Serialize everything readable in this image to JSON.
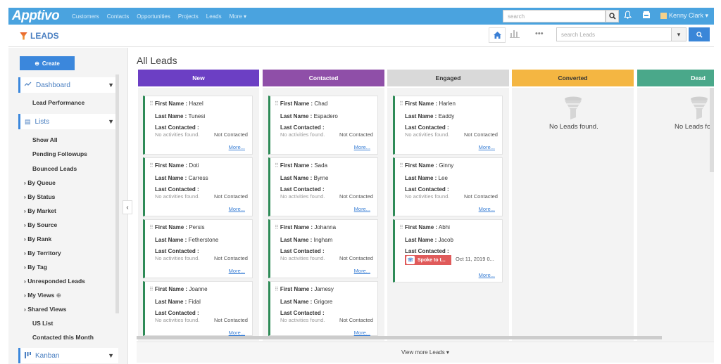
{
  "app": {
    "logo": "Apptivo"
  },
  "topnav": {
    "items": [
      "Customers",
      "Contacts",
      "Opportunities",
      "Projects",
      "Leads",
      "More ▾"
    ]
  },
  "topbar": {
    "search_placeholder": "search",
    "user": "Kenny Clark ▾"
  },
  "subheader": {
    "title": "LEADS",
    "search_placeholder": "search Leads"
  },
  "sidebar": {
    "create_label": "Create",
    "dashboard_label": "Dashboard",
    "lead_performance": "Lead Performance",
    "lists_label": "Lists",
    "items": [
      "Show All",
      "Pending Followups",
      "Bounced Leads"
    ],
    "groups": [
      "By Queue",
      "By Status",
      "By Market",
      "By Source",
      "By Rank",
      "By Territory",
      "By Tag",
      "Unresponded Leads",
      "My Views",
      "Shared Views"
    ],
    "bottom_items": [
      "US List",
      "Contacted this Month"
    ],
    "kanban_label": "Kanban"
  },
  "main": {
    "title": "All Leads",
    "columns": [
      {
        "label": "New",
        "color": "#6c3fc4"
      },
      {
        "label": "Contacted",
        "color": "#8f4fa8"
      },
      {
        "label": "Engaged",
        "color": "#d9d9d9"
      },
      {
        "label": "Converted",
        "color": "#f4b642"
      },
      {
        "label": "Dead",
        "color": "#4aa88a"
      }
    ],
    "labels": {
      "first_name": "First Name :",
      "last_name": "Last Name :",
      "last_contacted": "Last Contacted :",
      "no_activities": "No activities found.",
      "not_contacted": "Not Contacted",
      "more": "More...",
      "no_leads": "No Leads found.",
      "no_leads_cut": "No Leads fo"
    },
    "new": [
      {
        "first": "Hazel",
        "last": "Tunesi"
      },
      {
        "first": "Doti",
        "last": "Carress"
      },
      {
        "first": "Persis",
        "last": "Fetherstone"
      },
      {
        "first": "Joanne",
        "last": "Fidal"
      }
    ],
    "contacted": [
      {
        "first": "Chad",
        "last": "Espadero"
      },
      {
        "first": "Sada",
        "last": "Byrne"
      },
      {
        "first": "Johanna",
        "last": "Ingham"
      },
      {
        "first": "Jamesy",
        "last": "Grigore"
      }
    ],
    "engaged": [
      {
        "first": "Harlen",
        "last": "Eaddy"
      },
      {
        "first": "Ginny",
        "last": "Lee"
      },
      {
        "first": "Abhi",
        "last": "Jacob",
        "badge": "Spoke to t...",
        "date": "Oct 11, 2019 0..."
      }
    ],
    "view_more": "View more Leads ▾"
  }
}
